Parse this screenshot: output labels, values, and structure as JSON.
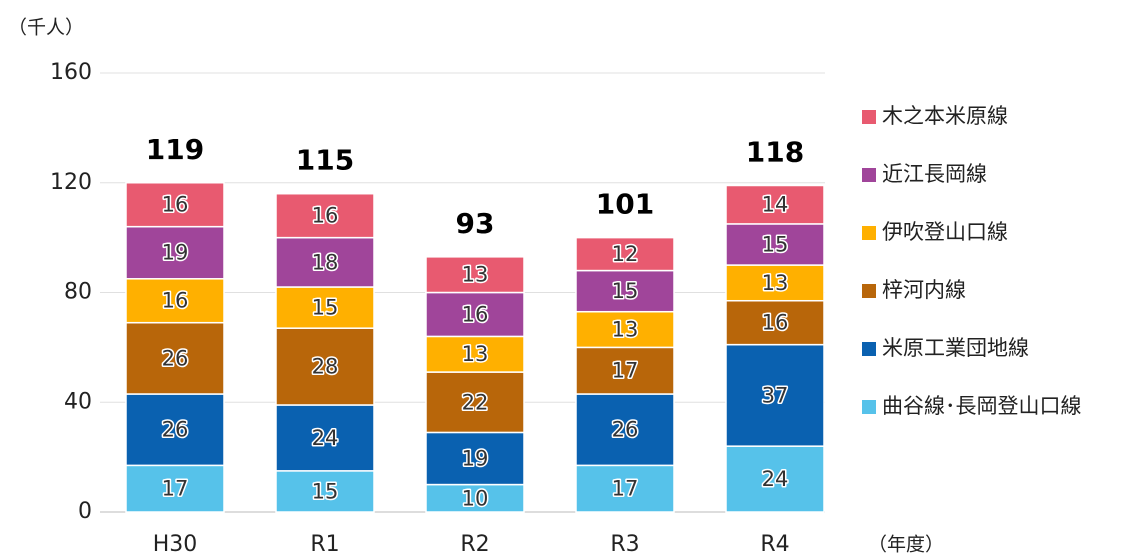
{
  "chart_data": {
    "type": "stacked_bar",
    "y_unit": "（千人）",
    "x_unit": "（年度）",
    "categories": [
      "H30",
      "R1",
      "R2",
      "R3",
      "R4"
    ],
    "series": [
      {
        "name": "曲谷線･長岡登山口線",
        "color": "#56c2ea",
        "values": [
          17,
          15,
          10,
          17,
          24
        ]
      },
      {
        "name": "米原工業団地線",
        "color": "#0a61b0",
        "values": [
          26,
          24,
          19,
          26,
          37
        ]
      },
      {
        "name": "梓河内線",
        "color": "#b8660a",
        "values": [
          26,
          28,
          22,
          17,
          16
        ]
      },
      {
        "name": "伊吹登山口線",
        "color": "#ffb000",
        "values": [
          16,
          15,
          13,
          13,
          13
        ]
      },
      {
        "name": "近江長岡線",
        "color": "#a0459a",
        "values": [
          19,
          18,
          16,
          15,
          15
        ]
      },
      {
        "name": "木之本米原線",
        "color": "#e85a70",
        "values": [
          16,
          16,
          13,
          12,
          14
        ]
      }
    ],
    "totals": [
      119,
      115,
      93,
      101,
      118
    ],
    "ylim": [
      0,
      160
    ],
    "yticks": [
      0,
      40,
      80,
      120,
      160
    ],
    "grid": true,
    "legend": "right"
  }
}
